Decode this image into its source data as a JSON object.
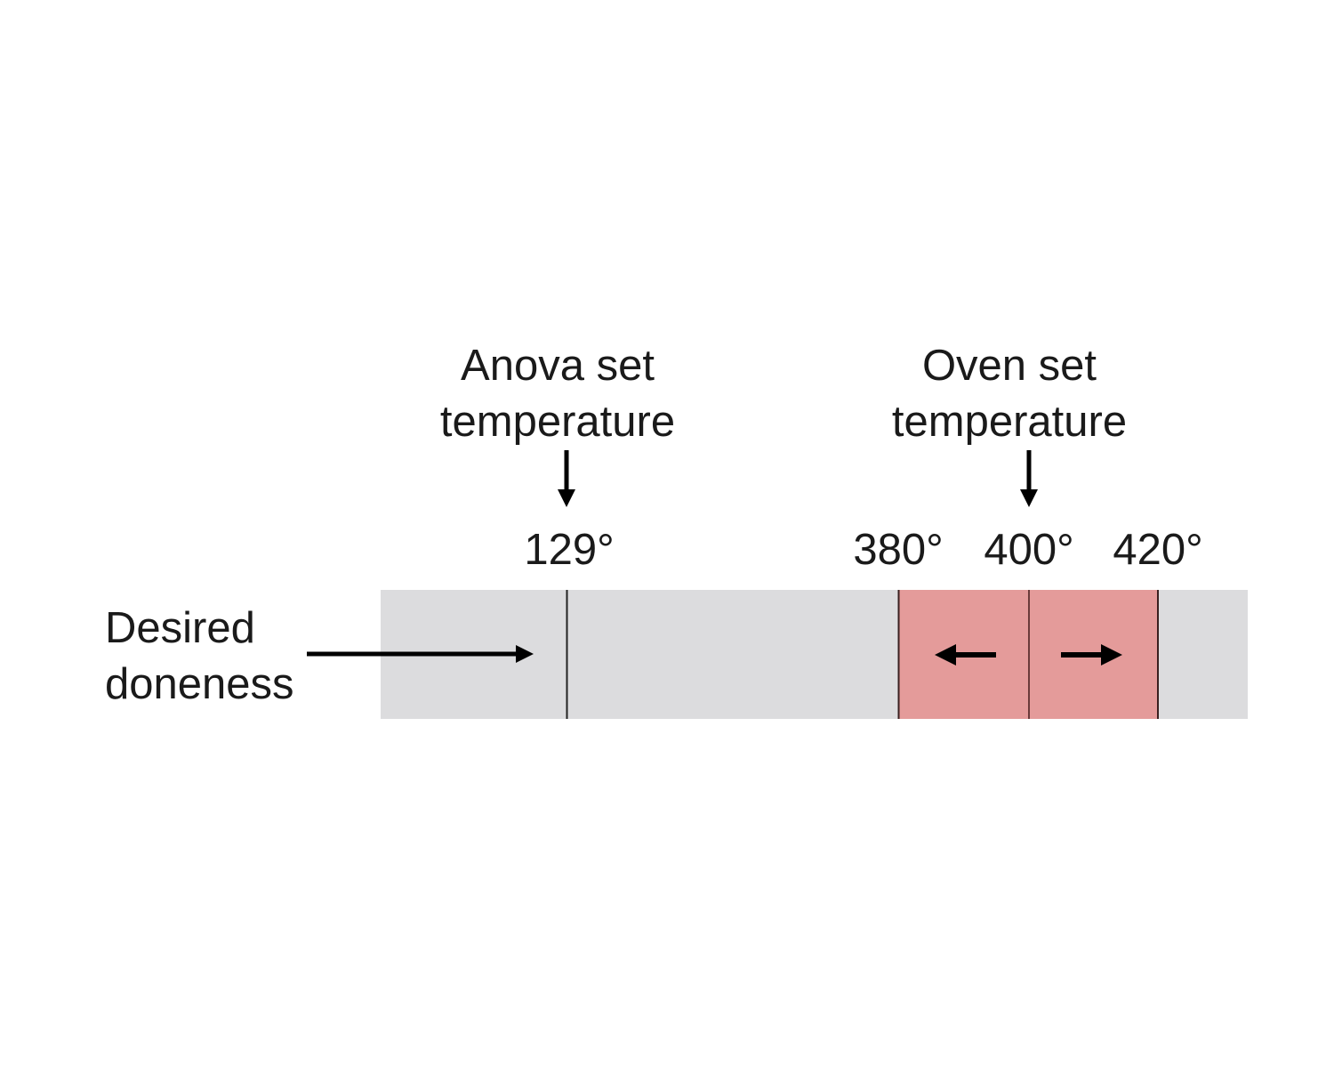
{
  "labels": {
    "anova_line1": "Anova set",
    "anova_line2": "temperature",
    "oven_line1": "Oven set",
    "oven_line2": "temperature",
    "doneness_line1": "Desired",
    "doneness_line2": "doneness"
  },
  "temperatures": {
    "anova": "129°",
    "oven_low": "380°",
    "oven_set": "400°",
    "oven_high": "420°"
  },
  "colors": {
    "bar": "#dcdcde",
    "oven_range": "#e49b9a",
    "ink": "#000000"
  }
}
